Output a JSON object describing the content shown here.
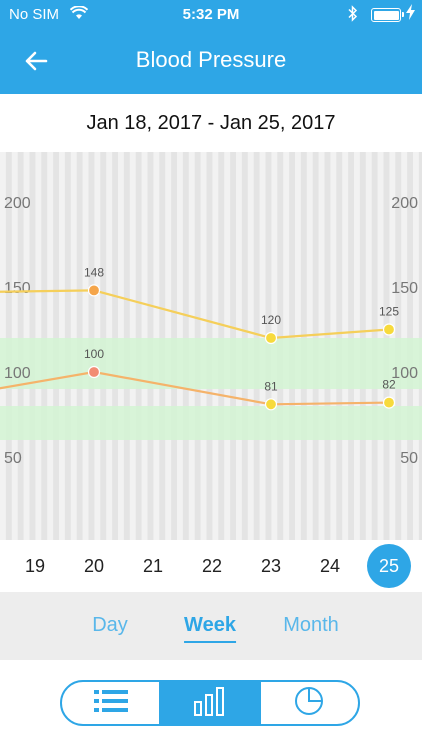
{
  "status_bar": {
    "carrier": "No SIM",
    "time": "5:32 PM",
    "icons": [
      "wifi-icon",
      "bluetooth-icon",
      "battery-icon",
      "charging-bolt-icon"
    ]
  },
  "nav": {
    "title": "Blood Pressure",
    "back_icon": "arrow-left-icon"
  },
  "date_range": "Jan 18, 2017 - Jan 25, 2017",
  "chart_data": {
    "type": "line",
    "x": [
      18,
      19,
      20,
      21,
      22,
      23,
      24,
      25
    ],
    "ylim": [
      20,
      230
    ],
    "y_ticks_left": [
      "200",
      "150",
      "100",
      "50"
    ],
    "y_ticks_right": [
      "200",
      "150",
      "100",
      "50"
    ],
    "y_tick_values": [
      200,
      150,
      100,
      50
    ],
    "normal_bands": [
      [
        90,
        120
      ],
      [
        60,
        80
      ]
    ],
    "series": [
      {
        "points": [
          [
            18,
            147
          ],
          [
            20,
            148
          ],
          [
            23,
            120
          ],
          [
            25,
            125
          ]
        ],
        "labels": [
          "",
          "148",
          "120",
          "125"
        ],
        "colors": [
          "#f7c34f",
          "#f5a54a",
          "#f7da3c",
          "#f7da3c"
        ],
        "line_color": "#f5cf5a"
      },
      {
        "points": [
          [
            18,
            88
          ],
          [
            20,
            100
          ],
          [
            23,
            81
          ],
          [
            25,
            82
          ]
        ],
        "labels": [
          "",
          "100",
          "81",
          "82"
        ],
        "colors": [
          "#f3a36b",
          "#f28c74",
          "#f7da3c",
          "#f7da3c"
        ],
        "line_color": "#f5b36a"
      }
    ],
    "colors": {
      "band": "#d3f5d3",
      "stripe_light": "#f2f2f2",
      "stripe_dark": "#e4e4e4",
      "tick_text": "#777777",
      "label_text": "#555555"
    }
  },
  "days": {
    "items": [
      "19",
      "20",
      "21",
      "22",
      "23",
      "24",
      "25"
    ],
    "selected": "25"
  },
  "period_tabs": {
    "items": [
      "Day",
      "Week",
      "Month"
    ],
    "selected": "Week"
  },
  "view_switch": {
    "items": [
      "list-icon",
      "bar-chart-icon",
      "pie-chart-icon"
    ],
    "selected": "bar-chart-icon"
  },
  "accent_color": "#2ea6e6"
}
